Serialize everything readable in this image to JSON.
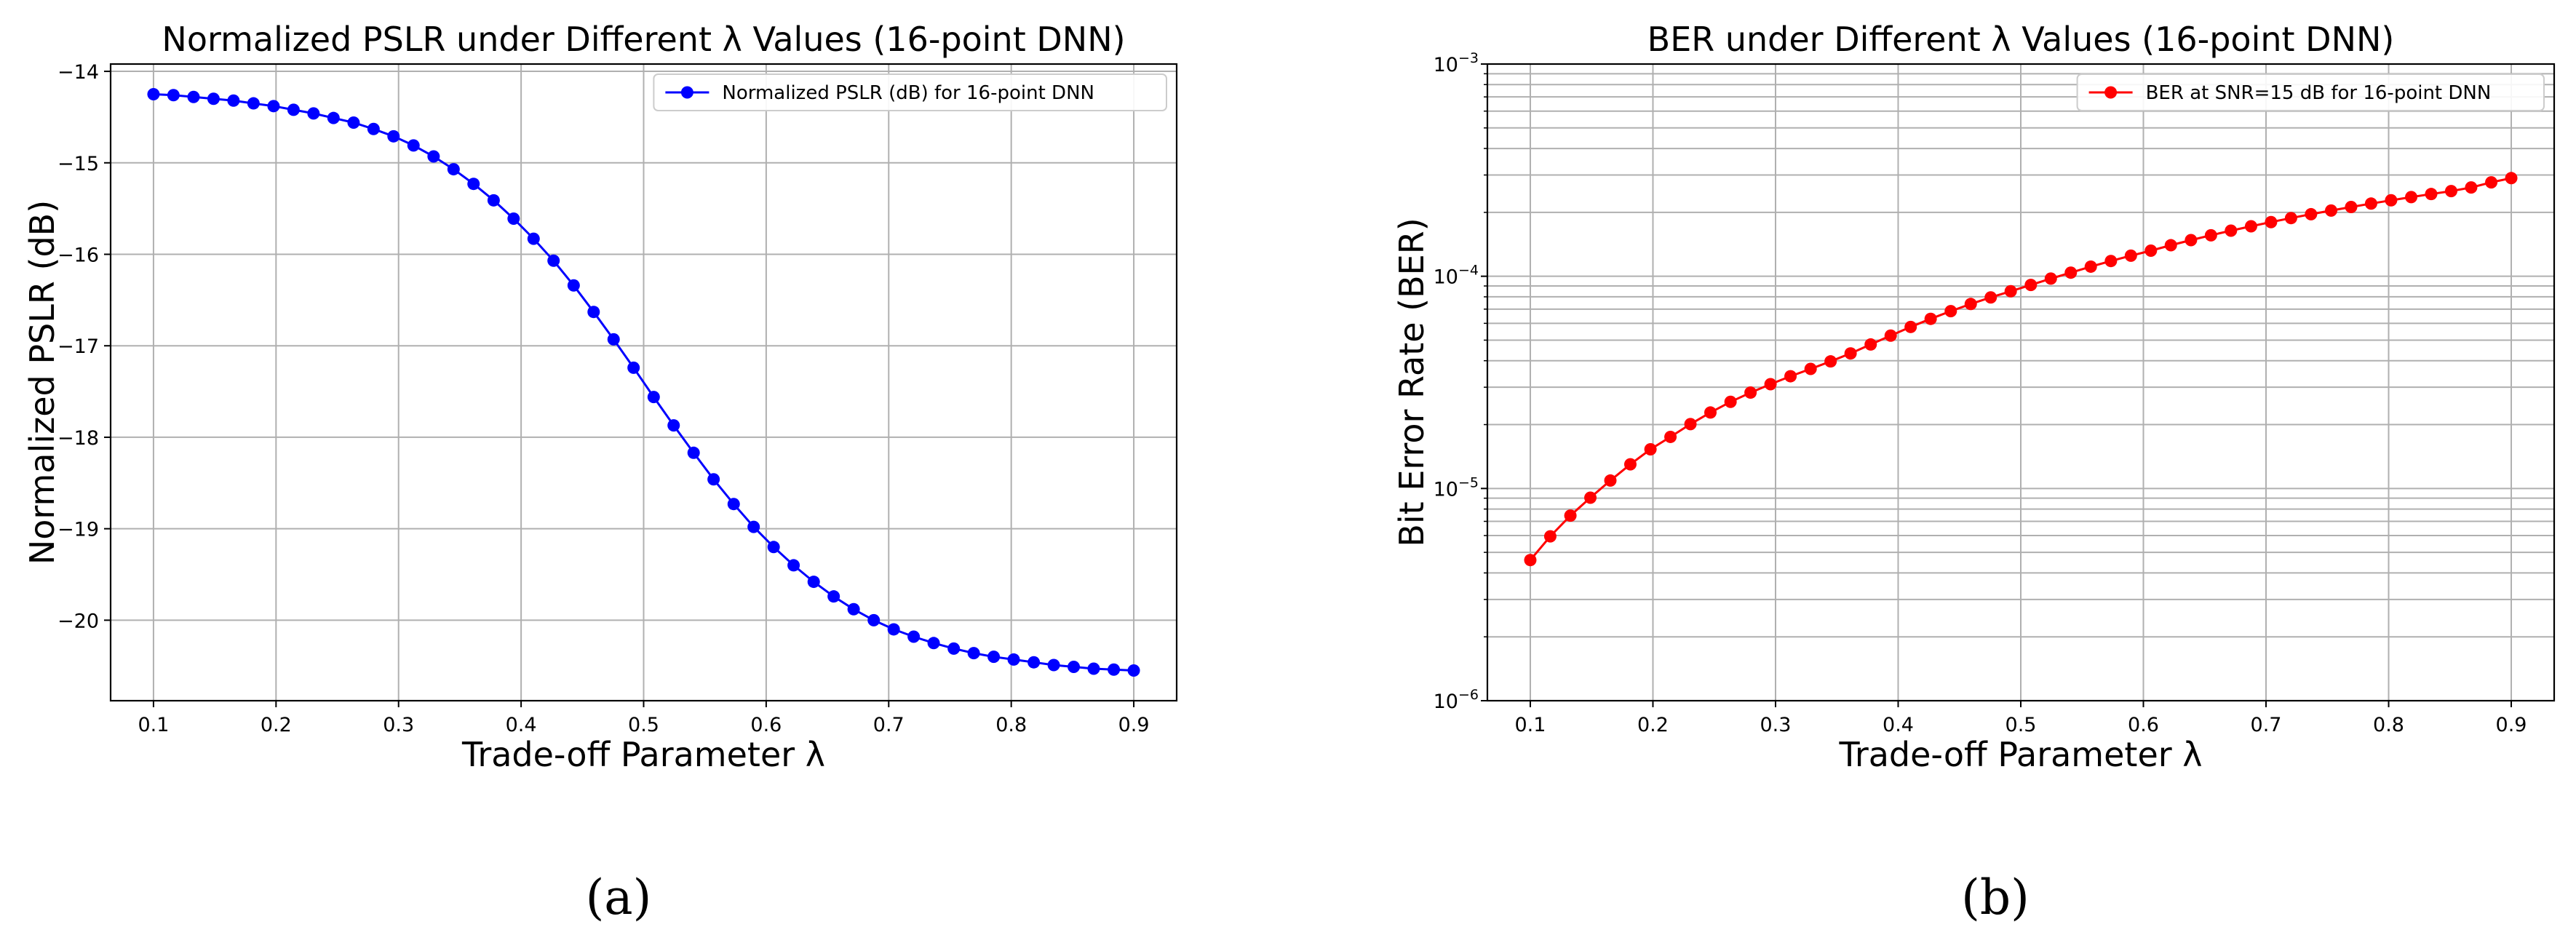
{
  "chart_data": [
    {
      "type": "line",
      "title": "Normalized PSLR under Different λ Values (16-point DNN)",
      "xlabel": "Trade-off Parameter λ",
      "ylabel": "Normalized PSLR (dB)",
      "xlim": [
        0.065,
        0.935
      ],
      "ylim": [
        -20.88,
        -13.92
      ],
      "xticks": [
        "0.1",
        "0.2",
        "0.3",
        "0.4",
        "0.5",
        "0.6",
        "0.7",
        "0.8",
        "0.9"
      ],
      "yticks": [
        "−14",
        "−15",
        "−16",
        "−17",
        "−18",
        "−19",
        "−20"
      ],
      "grid": true,
      "legend_position": "top-right",
      "series": [
        {
          "name": "Normalized PSLR (dB) for 16-point DNN",
          "color": "#0000ff",
          "x": [
            0.1,
            0.1163,
            0.1327,
            0.149,
            0.1653,
            0.1816,
            0.198,
            0.2143,
            0.2306,
            0.2469,
            0.2633,
            0.2796,
            0.2959,
            0.3122,
            0.3286,
            0.3449,
            0.3612,
            0.3776,
            0.3939,
            0.4102,
            0.4265,
            0.4429,
            0.4592,
            0.4755,
            0.4918,
            0.5082,
            0.5245,
            0.5408,
            0.5571,
            0.5735,
            0.5898,
            0.6061,
            0.6224,
            0.6388,
            0.6551,
            0.6714,
            0.6878,
            0.7041,
            0.7204,
            0.7367,
            0.7531,
            0.7694,
            0.7857,
            0.802,
            0.8184,
            0.8347,
            0.851,
            0.8673,
            0.8837,
            0.9
          ],
          "values": [
            -14.25,
            -14.26,
            -14.28,
            -14.3,
            -14.32,
            -14.35,
            -14.38,
            -14.42,
            -14.46,
            -14.51,
            -14.56,
            -14.63,
            -14.71,
            -14.81,
            -14.93,
            -15.07,
            -15.23,
            -15.41,
            -15.61,
            -15.83,
            -16.07,
            -16.34,
            -16.63,
            -16.93,
            -17.24,
            -17.56,
            -17.87,
            -18.17,
            -18.46,
            -18.73,
            -18.98,
            -19.2,
            -19.4,
            -19.58,
            -19.74,
            -19.88,
            -20.0,
            -20.1,
            -20.18,
            -20.25,
            -20.31,
            -20.36,
            -20.4,
            -20.43,
            -20.46,
            -20.49,
            -20.51,
            -20.53,
            -20.54,
            -20.55
          ]
        }
      ]
    },
    {
      "type": "line",
      "title": "BER under Different λ Values (16-point DNN)",
      "xlabel": "Trade-off Parameter λ",
      "ylabel": "Bit Error Rate (BER)",
      "yscale": "log",
      "xlim": [
        0.065,
        0.935
      ],
      "ylim": [
        1e-06,
        0.001
      ],
      "xticks": [
        "0.1",
        "0.2",
        "0.3",
        "0.4",
        "0.5",
        "0.6",
        "0.7",
        "0.8",
        "0.9"
      ],
      "yticks": [
        {
          "base": "10",
          "exp": "−3",
          "value": 0.001
        },
        {
          "base": "10",
          "exp": "−4",
          "value": 0.0001
        },
        {
          "base": "10",
          "exp": "−5",
          "value": 1e-05
        },
        {
          "base": "10",
          "exp": "−6",
          "value": 1e-06
        }
      ],
      "grid": true,
      "legend_position": "top-right",
      "series": [
        {
          "name": "BER at SNR=15 dB for 16-point DNN",
          "color": "#ff0000",
          "x": [
            0.1,
            0.1163,
            0.1327,
            0.149,
            0.1653,
            0.1816,
            0.198,
            0.2143,
            0.2306,
            0.2469,
            0.2633,
            0.2796,
            0.2959,
            0.3122,
            0.3286,
            0.3449,
            0.3612,
            0.3776,
            0.3939,
            0.4102,
            0.4265,
            0.4429,
            0.4592,
            0.4755,
            0.4918,
            0.5082,
            0.5245,
            0.5408,
            0.5571,
            0.5735,
            0.5898,
            0.6061,
            0.6224,
            0.6388,
            0.6551,
            0.6714,
            0.6878,
            0.7041,
            0.7204,
            0.7367,
            0.7531,
            0.7694,
            0.7857,
            0.802,
            0.8184,
            0.8347,
            0.851,
            0.8673,
            0.8837,
            0.9
          ],
          "values": [
            4.6e-06,
            5.95e-06,
            7.45e-06,
            9.05e-06,
            1.09e-05,
            1.3e-05,
            1.53e-05,
            1.75e-05,
            2.01e-05,
            2.28e-05,
            2.56e-05,
            2.83e-05,
            3.1e-05,
            3.38e-05,
            3.66e-05,
            3.97e-05,
            4.33e-05,
            4.77e-05,
            5.25e-05,
            5.77e-05,
            6.3e-05,
            6.85e-05,
            7.4e-05,
            7.95e-05,
            8.5e-05,
            9.1e-05,
            9.75e-05,
            0.000104,
            0.000111,
            0.000118,
            0.000125,
            0.000132,
            0.00014,
            0.000148,
            0.000156,
            0.000164,
            0.000172,
            0.00018,
            0.000188,
            0.000196,
            0.000204,
            0.000212,
            0.00022,
            0.000228,
            0.000236,
            0.000244,
            0.000252,
            0.000262,
            0.000277,
            0.00029
          ]
        }
      ]
    }
  ],
  "captions": [
    "(a)",
    "(b)"
  ]
}
